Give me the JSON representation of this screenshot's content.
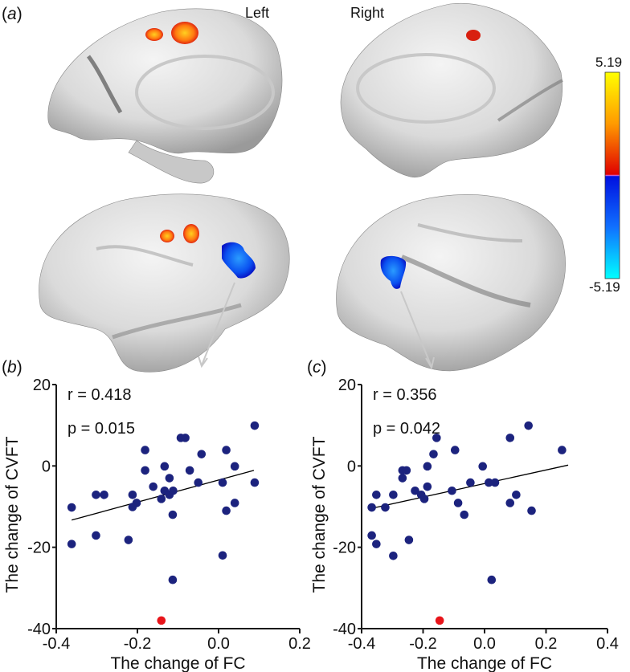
{
  "panel_a": {
    "label_open": "(",
    "label_letter": "a",
    "label_close": ")",
    "left_label": "Left",
    "right_label": "Right",
    "colorbar": {
      "max_label": "5.19",
      "min_label": "-5.19",
      "colors": {
        "top": "#ffff00",
        "mid_pos": "#ff8000",
        "zero_pos": "#e00000",
        "zero_neg": "#0010e0",
        "mid_neg": "#1070ff",
        "bottom": "#00ffff"
      }
    },
    "clusters": [
      {
        "view": "left-medial",
        "sign": "positive"
      },
      {
        "view": "right-medial",
        "sign": "positive"
      },
      {
        "view": "left-lateral",
        "sign": "positive"
      },
      {
        "view": "left-lateral",
        "sign": "negative"
      },
      {
        "view": "right-lateral",
        "sign": "negative"
      }
    ]
  },
  "panel_b": {
    "label_open": "(",
    "label_letter": "b",
    "label_close": ")",
    "r_text": "r = 0.418",
    "p_text": "p = 0.015"
  },
  "panel_c": {
    "label_open": "(",
    "label_letter": "c",
    "label_close": ")",
    "r_text": "r = 0.356",
    "p_text": "p = 0.042"
  },
  "colors": {
    "point": "#1c237e",
    "outlier": "#e8141a",
    "axis": "#1a1a1a",
    "fit_line": "#000000",
    "arrow": "#c8c8c8"
  },
  "chart_data": [
    {
      "type": "scatter",
      "title": "(b)",
      "xlabel": "The change of FC",
      "ylabel": "The change of CVFT",
      "xlim": [
        -0.4,
        0.2
      ],
      "ylim": [
        -40,
        20
      ],
      "xticks": [
        -0.4,
        -0.2,
        0.0,
        0.2
      ],
      "xtick_labels": [
        "-0.4",
        "-0.2",
        "0.0",
        "0.2"
      ],
      "yticks": [
        -40,
        -20,
        0,
        20
      ],
      "ytick_labels": [
        "-40",
        "-20",
        "0",
        "20"
      ],
      "grid": false,
      "annotations": [
        "r = 0.418",
        "p = 0.015"
      ],
      "fit_line": {
        "x": [
          -0.362,
          0.087
        ],
        "y": [
          -13.3,
          -1.1
        ]
      },
      "points": [
        [
          -0.362,
          -10.2
        ],
        [
          -0.362,
          -19.2
        ],
        [
          -0.302,
          -7.1
        ],
        [
          -0.282,
          -7.1
        ],
        [
          -0.302,
          -17.1
        ],
        [
          -0.222,
          -18.2
        ],
        [
          -0.212,
          -7.1
        ],
        [
          -0.202,
          -9.1
        ],
        [
          -0.212,
          -10.1
        ],
        [
          -0.181,
          3.9
        ],
        [
          -0.181,
          -1.1
        ],
        [
          -0.161,
          -5.1
        ],
        [
          -0.133,
          -0.1
        ],
        [
          -0.121,
          -3.0
        ],
        [
          -0.133,
          -6.1
        ],
        [
          -0.141,
          -8.1
        ],
        [
          -0.121,
          -7.1
        ],
        [
          -0.112,
          -6.1
        ],
        [
          -0.113,
          -12.0
        ],
        [
          -0.113,
          -28.0
        ],
        [
          -0.093,
          6.9
        ],
        [
          -0.082,
          6.9
        ],
        [
          -0.071,
          -1.1
        ],
        [
          -0.042,
          2.9
        ],
        [
          -0.05,
          -4.1
        ],
        [
          0.01,
          -4.1
        ],
        [
          0.019,
          3.9
        ],
        [
          0.04,
          -0.1
        ],
        [
          0.019,
          -11.0
        ],
        [
          0.04,
          -9.1
        ],
        [
          0.01,
          -22.0
        ],
        [
          0.089,
          9.9
        ],
        [
          0.089,
          -4.1
        ]
      ],
      "outliers": [
        [
          -0.141,
          -38.0
        ]
      ]
    },
    {
      "type": "scatter",
      "title": "(c)",
      "xlabel": "The change of FC",
      "ylabel": "The change of CVFT",
      "xlim": [
        -0.4,
        0.4
      ],
      "ylim": [
        -40,
        20
      ],
      "xticks": [
        -0.4,
        -0.2,
        0.0,
        0.2,
        0.4
      ],
      "xtick_labels": [
        "-0.4",
        "-0.2",
        "0.0",
        "0.2",
        "0.4"
      ],
      "yticks": [
        -40,
        -20,
        0,
        20
      ],
      "ytick_labels": [
        "-40",
        "-20",
        "0",
        "20"
      ],
      "grid": false,
      "annotations": [
        "r = 0.356",
        "p = 0.042"
      ],
      "fit_line": {
        "x": [
          -0.377,
          0.272
        ],
        "y": [
          -10.6,
          0.2
        ]
      },
      "points": [
        [
          -0.367,
          -10.2
        ],
        [
          -0.367,
          -17.1
        ],
        [
          -0.352,
          -7.1
        ],
        [
          -0.352,
          -19.2
        ],
        [
          -0.323,
          -10.2
        ],
        [
          -0.297,
          -7.1
        ],
        [
          -0.297,
          -22.1
        ],
        [
          -0.267,
          -3.0
        ],
        [
          -0.267,
          -1.1
        ],
        [
          -0.254,
          -1.1
        ],
        [
          -0.246,
          -18.2
        ],
        [
          -0.226,
          -6.1
        ],
        [
          -0.206,
          -7.1
        ],
        [
          -0.196,
          -8.1
        ],
        [
          -0.186,
          -5.1
        ],
        [
          -0.186,
          -0.1
        ],
        [
          -0.166,
          2.9
        ],
        [
          -0.156,
          6.9
        ],
        [
          -0.106,
          -6.1
        ],
        [
          -0.096,
          3.9
        ],
        [
          -0.086,
          -9.1
        ],
        [
          -0.066,
          -12.0
        ],
        [
          -0.046,
          -4.1
        ],
        [
          -0.006,
          -0.1
        ],
        [
          0.014,
          -4.1
        ],
        [
          0.034,
          -4.1
        ],
        [
          0.023,
          -28.0
        ],
        [
          0.083,
          6.9
        ],
        [
          0.083,
          -9.1
        ],
        [
          0.103,
          -7.1
        ],
        [
          0.143,
          9.9
        ],
        [
          0.153,
          -11.0
        ],
        [
          0.252,
          3.9
        ]
      ],
      "outliers": [
        [
          -0.146,
          -38.0
        ]
      ]
    }
  ]
}
